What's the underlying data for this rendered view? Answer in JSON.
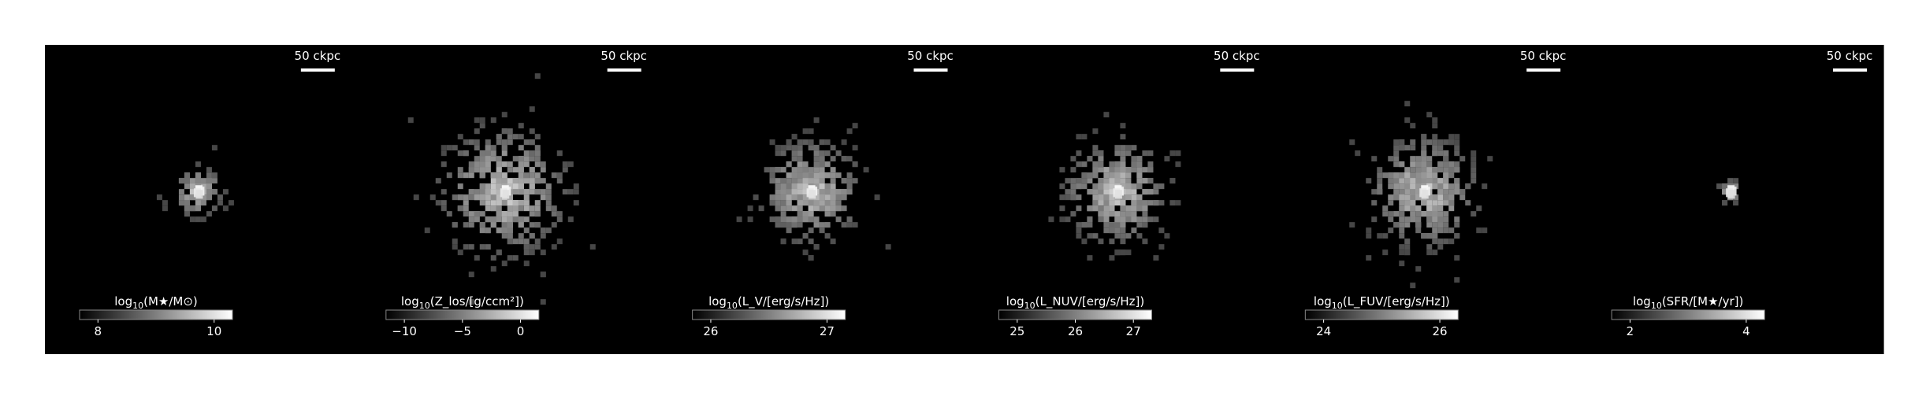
{
  "figure": {
    "background": "#000000",
    "page_background": "#ffffff",
    "text_color": "#ffffff",
    "scalebar_color": "#ffffff"
  },
  "panels": [
    {
      "id": "stellar-mass",
      "scalebar": "50 ckpc",
      "colorbar": {
        "label_prefix": "log",
        "label_sub": "10",
        "label_body": "(M★/M⊙)",
        "ticks": [
          "8",
          "10"
        ]
      },
      "source": {
        "spread": 0.55,
        "count": 90,
        "core": 1.0
      }
    },
    {
      "id": "metallicity",
      "scalebar": "50 ckpc",
      "colorbar": {
        "label_prefix": "log",
        "label_sub": "10",
        "label_body": "(Z_los/[g/ccm²])",
        "ticks": [
          "−10",
          "−5",
          "0"
        ]
      },
      "source": {
        "spread": 1.4,
        "count": 420,
        "core": 1.0
      }
    },
    {
      "id": "v-band",
      "scalebar": "50 ckpc",
      "colorbar": {
        "label_prefix": "log",
        "label_sub": "10",
        "label_body": "(L_V/[erg/s/Hz])",
        "ticks": [
          "26",
          "27"
        ]
      },
      "source": {
        "spread": 1.1,
        "count": 340,
        "core": 1.0
      }
    },
    {
      "id": "nuv-band",
      "scalebar": "50 ckpc",
      "colorbar": {
        "label_prefix": "log",
        "label_sub": "10",
        "label_body": "(L_NUV/[erg/s/Hz])",
        "ticks": [
          "25",
          "26",
          "27"
        ]
      },
      "source": {
        "spread": 1.15,
        "count": 360,
        "core": 1.0
      }
    },
    {
      "id": "fuv-band",
      "scalebar": "50 ckpc",
      "colorbar": {
        "label_prefix": "log",
        "label_sub": "10",
        "label_body": "(L_FUV/[erg/s/Hz])",
        "ticks": [
          "24",
          "26"
        ]
      },
      "source": {
        "spread": 1.2,
        "count": 380,
        "core": 1.0
      }
    },
    {
      "id": "sfr",
      "scalebar": "50 ckpc",
      "colorbar": {
        "label_prefix": "log",
        "label_sub": "10",
        "label_body": "(SFR/[M★/yr])",
        "ticks": [
          "2",
          "4"
        ]
      },
      "source": {
        "spread": 0.25,
        "count": 22,
        "core": 0.9
      }
    }
  ]
}
